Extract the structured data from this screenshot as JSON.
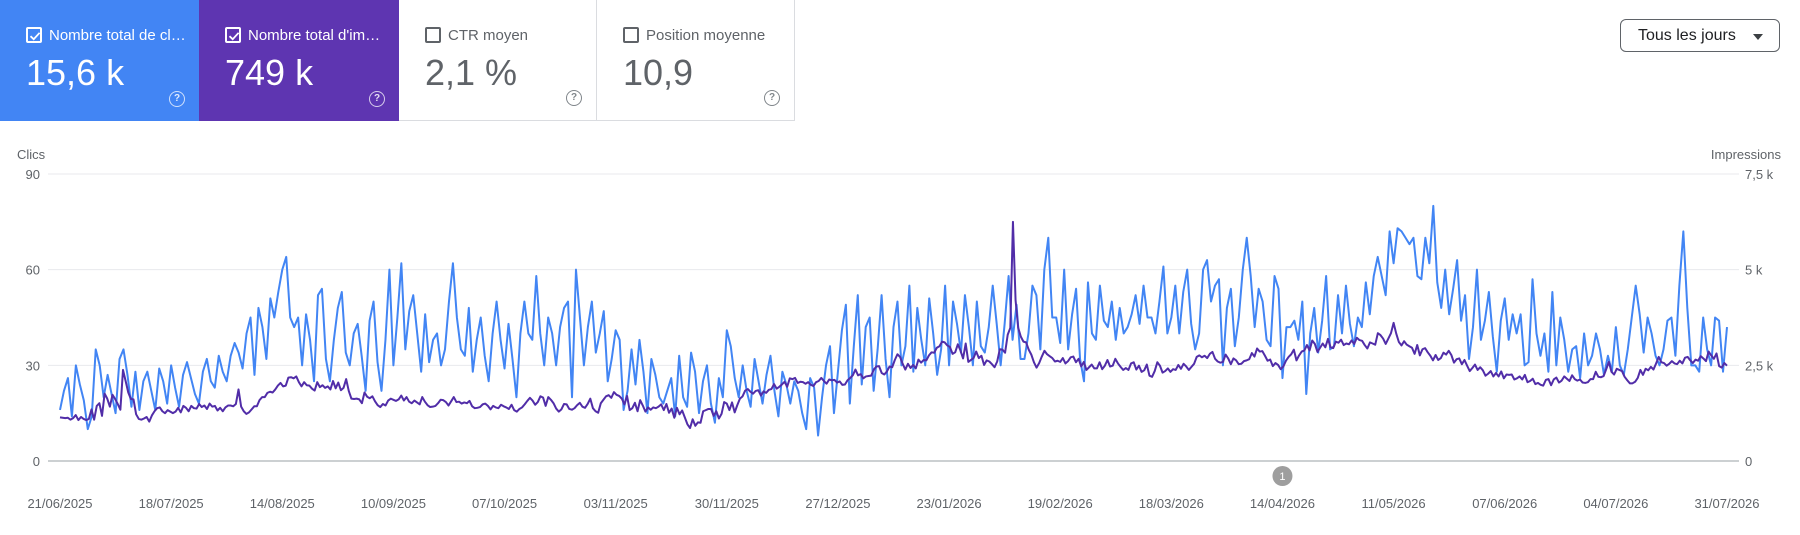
{
  "metrics": [
    {
      "label": "Nombre total de clics",
      "value": "15,6 k",
      "checked": true,
      "accent": "#4285f4"
    },
    {
      "label": "Nombre total d'impressions",
      "value": "749 k",
      "checked": true,
      "accent": "#5e35b1"
    },
    {
      "label": "CTR moyen",
      "value": "2,1 %",
      "checked": false
    },
    {
      "label": "Position moyenne",
      "value": "10,9",
      "checked": false
    }
  ],
  "help_glyph": "?",
  "period_selector": {
    "label": "Tous les jours"
  },
  "chart_data": {
    "type": "line",
    "y_left": {
      "label": "Clics",
      "ticks": [
        "90",
        "60",
        "30",
        "0"
      ],
      "range": [
        0,
        90
      ]
    },
    "y_right": {
      "label": "Impressions",
      "ticks": [
        "7,5 k",
        "5 k",
        "2,5 k",
        "0"
      ],
      "range": [
        0,
        7500
      ]
    },
    "x_ticks": [
      "21/06/2025",
      "18/07/2025",
      "14/08/2025",
      "10/09/2025",
      "07/10/2025",
      "03/11/2025",
      "30/11/2025",
      "27/12/2025",
      "23/01/2026",
      "19/02/2026",
      "18/03/2026",
      "14/04/2026",
      "11/05/2026",
      "07/06/2026",
      "04/07/2026",
      "31/07/2026"
    ],
    "grid": true,
    "annotation": {
      "text": "1",
      "date": "14/04/2026"
    },
    "series": [
      {
        "axis": "left",
        "color": "#4285f4",
        "values": [
          16,
          22,
          26,
          14,
          30,
          24,
          19,
          10,
          14,
          35,
          30,
          20,
          27,
          21,
          15,
          32,
          35,
          27,
          17,
          28,
          16,
          25,
          28,
          22,
          16,
          29,
          25,
          18,
          30,
          23,
          17,
          27,
          31,
          26,
          21,
          18,
          28,
          32,
          25,
          23,
          33,
          28,
          25,
          33,
          37,
          34,
          29,
          40,
          45,
          27,
          48,
          42,
          32,
          51,
          45,
          53,
          60,
          64,
          45,
          42,
          45,
          30,
          46,
          38,
          25,
          52,
          54,
          32,
          25,
          38,
          48,
          53,
          34,
          30,
          40,
          43,
          33,
          22,
          44,
          50,
          31,
          22,
          38,
          60,
          30,
          45,
          62,
          35,
          47,
          52,
          40,
          28,
          46,
          31,
          38,
          40,
          30,
          35,
          50,
          62,
          45,
          35,
          33,
          48,
          28,
          38,
          45,
          33,
          25,
          40,
          50,
          38,
          29,
          43,
          32,
          20,
          40,
          50,
          40,
          38,
          58,
          40,
          30,
          45,
          40,
          30,
          42,
          48,
          50,
          20,
          60,
          45,
          30,
          42,
          50,
          34,
          40,
          47,
          25,
          32,
          41,
          38,
          16,
          22,
          35,
          24,
          38,
          28,
          15,
          32,
          27,
          20,
          18,
          22,
          26,
          14,
          33,
          20,
          17,
          34,
          28,
          15,
          25,
          30,
          18,
          12,
          26,
          20,
          41,
          36,
          26,
          20,
          30,
          22,
          17,
          32,
          25,
          18,
          27,
          33,
          22,
          14,
          28,
          24,
          18,
          25,
          22,
          15,
          10,
          26,
          23,
          8,
          20,
          30,
          36,
          15,
          28,
          41,
          49,
          18,
          36,
          52,
          24,
          42,
          45,
          22,
          35,
          52,
          32,
          20,
          42,
          50,
          30,
          36,
          55,
          28,
          48,
          38,
          30,
          51,
          40,
          27,
          35,
          55,
          30,
          50,
          43,
          34,
          52,
          42,
          30,
          50,
          36,
          34,
          42,
          55,
          43,
          30,
          43,
          58,
          38,
          49,
          32,
          32,
          40,
          55,
          52,
          35,
          60,
          70,
          45,
          45,
          37,
          60,
          35,
          46,
          54,
          32,
          25,
          56,
          40,
          38,
          55,
          44,
          42,
          50,
          38,
          48,
          40,
          42,
          46,
          52,
          43,
          55,
          45,
          45,
          40,
          50,
          61,
          40,
          45,
          55,
          40,
          53,
          60,
          43,
          35,
          40,
          60,
          63,
          50,
          55,
          57,
          30,
          48,
          54,
          36,
          45,
          60,
          70,
          58,
          42,
          54,
          50,
          38,
          36,
          58,
          54,
          26,
          42,
          42,
          44,
          38,
          50,
          21,
          40,
          48,
          34,
          44,
          58,
          35,
          36,
          52,
          40,
          55,
          43,
          36,
          45,
          42,
          56,
          46,
          58,
          64,
          58,
          52,
          72,
          62,
          73,
          72,
          70,
          68,
          70,
          58,
          57,
          70,
          62,
          80,
          56,
          48,
          60,
          46,
          54,
          63,
          44,
          52,
          32,
          42,
          60,
          38,
          44,
          53,
          39,
          28,
          44,
          51,
          38,
          46,
          40,
          46,
          30,
          31,
          57,
          40,
          33,
          40,
          28,
          53,
          30,
          45,
          38,
          28,
          35,
          36,
          26,
          40,
          30,
          33,
          40,
          35,
          27,
          33,
          28,
          42,
          30,
          27,
          35,
          45,
          55,
          46,
          34,
          45,
          40,
          33,
          30,
          35,
          44,
          45,
          33,
          55,
          72,
          48,
          30,
          30,
          28,
          45,
          35,
          30,
          45,
          44,
          28,
          42
        ],
        "name": ""
      },
      {
        "axis": "right",
        "color": "#512da8",
        "values": [
          1140,
          1130,
          1120,
          1130,
          1080,
          1120,
          1200,
          1070,
          1150,
          1100,
          1070,
          1100,
          1350,
          1080,
          1440,
          1510,
          1180,
          1760,
          1630,
          1420,
          1730,
          1620,
          1490,
          1340,
          2380,
          2090,
          1790,
          1620,
          1610,
          1220,
          1100,
          1080,
          1110,
          1150,
          1030,
          1190,
          1300,
          1380,
          1400,
          1300,
          1250,
          1330,
          1290,
          1250,
          1290,
          1390,
          1270,
          1440,
          1390,
          1300,
          1440,
          1380,
          1370,
          1490,
          1410,
          1450,
          1360,
          1500,
          1420,
          1440,
          1320,
          1390,
          1300,
          1400,
          1450,
          1450,
          1430,
          1490,
          1870,
          1420,
          1300,
          1230,
          1270,
          1350,
          1430,
          1430,
          1590,
          1670,
          1670,
          1780,
          1810,
          1790,
          1870,
          1970,
          2040,
          1950,
          1970,
          2180,
          2190,
          2160,
          2210,
          2060,
          1950,
          2060,
          1980,
          1970,
          1890,
          1840,
          2060,
          1930,
          1980,
          1910,
          1950,
          1870,
          2090,
          1900,
          2050,
          1850,
          1910,
          2140,
          1830,
          1630,
          1620,
          1630,
          1610,
          1510,
          1790,
          1680,
          1640,
          1690,
          1560,
          1460,
          1410,
          1490,
          1450,
          1580,
          1630,
          1600,
          1570,
          1610,
          1710,
          1580,
          1670,
          1550,
          1510,
          1580,
          1530,
          1480,
          1670,
          1550,
          1460,
          1410,
          1420,
          1440,
          1510,
          1600,
          1590,
          1540,
          1450,
          1560,
          1670,
          1540,
          1550,
          1500,
          1530,
          1510,
          1570,
          1430,
          1380,
          1390,
          1410,
          1480,
          1500,
          1440,
          1350,
          1440,
          1400,
          1380,
          1470,
          1430,
          1400,
          1360,
          1470,
          1330,
          1290,
          1360,
          1400,
          1480,
          1570,
          1650,
          1580,
          1470,
          1540,
          1690,
          1660,
          1440,
          1670,
          1600,
          1510,
          1370,
          1290,
          1350,
          1490,
          1480,
          1360,
          1340,
          1380,
          1460,
          1520,
          1420,
          1390,
          1490,
          1630,
          1380,
          1300,
          1260,
          1510,
          1600,
          1690,
          1720,
          1650,
          1800,
          1730,
          1700,
          1630,
          1480,
          1700,
          1330,
          1380,
          1520,
          1300,
          1590,
          1450,
          1290,
          1400,
          1340,
          1400,
          1380,
          1420,
          1480,
          1330,
          1490,
          1260,
          1370,
          1130,
          1390,
          1220,
          1320,
          1140,
          960,
          860,
          1090,
          920,
          1010,
          1000,
          1300,
          1330,
          1360,
          1360,
          1180,
          1300,
          1110,
          1230,
          1540,
          1500,
          1330,
          1530,
          1270,
          1460,
          1630,
          1690,
          1840,
          1880,
          1810,
          1760,
          1830,
          1850,
          1710,
          1820,
          1780,
          1860,
          1880,
          2010,
          1890,
          1940,
          2000,
          2070,
          1940,
          2160,
          2140,
          2170,
          2040,
          2070,
          2060,
          2020,
          2060,
          1990,
          1960,
          2060,
          2090,
          2170,
          2090,
          2020,
          2130,
          2110,
          2120,
          2050,
          2080,
          1990,
          2000,
          2110,
          2170,
          2240,
          2390,
          2240,
          2270,
          2160,
          2210,
          2220,
          2230,
          2390,
          2470,
          2480,
          2300,
          2260,
          2340,
          2470,
          2450,
          2640,
          2790,
          2720,
          2540,
          2390,
          2540,
          2430,
          2510,
          2420,
          2650,
          2570,
          2640,
          2630,
          2760,
          2840,
          2830,
          2960,
          3000,
          3120,
          3100,
          3020,
          2980,
          2800,
          2840,
          3050,
          2890,
          2680,
          3070,
          2590,
          2640,
          2690,
          2860,
          2690,
          2750,
          2510,
          2630,
          2600,
          2530,
          2450,
          2600,
          2920,
          2910,
          2830,
          3300,
          3480,
          6250,
          4200,
          3480,
          3250,
          3120,
          3100,
          2910,
          2780,
          2580,
          2440,
          2560,
          2730,
          2880,
          2790,
          2740,
          2690,
          2600,
          2620,
          2590,
          2690,
          2550,
          2610,
          2710,
          2730,
          2580,
          2670,
          2470,
          2590,
          2380,
          2450,
          2520,
          2420,
          2420,
          2580,
          2400,
          2490,
          2640,
          2470,
          2490,
          2670,
          2550,
          2460,
          2380,
          2430,
          2380,
          2550,
          2580,
          2390,
          2490,
          2330,
          2370,
          2520,
          2230,
          2200,
          2350,
          2580,
          2490,
          2310,
          2350,
          2420,
          2330,
          2400,
          2380,
          2510,
          2410,
          2540,
          2470,
          2380,
          2460,
          2540,
          2720,
          2760,
          2710,
          2750,
          2690,
          2800,
          2850,
          2670,
          2600,
          2570,
          2590,
          2780,
          2680,
          2530,
          2680,
          2630,
          2530,
          2540,
          2610,
          2630,
          2660,
          2820,
          2730,
          2940,
          2860,
          2870,
          2750,
          2620,
          2650,
          2480,
          2560,
          2510,
          2400,
          2470,
          2620,
          2720,
          2790,
          2910,
          2630,
          2760,
          2860,
          2890,
          3030,
          2890,
          3150,
          3060,
          2850,
          2960,
          3070,
          2970,
          3190,
          2970,
          2950,
          3120,
          3090,
          3170,
          3030,
          3070,
          3050,
          3150,
          3060,
          3220,
          3160,
          3140,
          3030,
          2940,
          3100,
          3070,
          3040,
          3340,
          3290,
          3200,
          3060,
          3200,
          3340,
          3610,
          3330,
          3110,
          3020,
          3130,
          3040,
          3000,
          2960,
          2800,
          3030,
          2760,
          2920,
          2950,
          2840,
          2750,
          2630,
          2770,
          2640,
          2690,
          2830,
          2780,
          2880,
          2770,
          2570,
          2660,
          2680,
          2530,
          2640,
          2490,
          2350,
          2430,
          2520,
          2380,
          2450,
          2370,
          2230,
          2280,
          2350,
          2210,
          2300,
          2210,
          2340,
          2160,
          2260,
          2250,
          2260,
          2130,
          2160,
          2210,
          2130,
          2250,
          2060,
          2090,
          2150,
          2010,
          2040,
          1990,
          1970,
          2120,
          2140,
          1980,
          2130,
          2180,
          2050,
          2100,
          2210,
          2150,
          2090,
          2240,
          2140,
          2100,
          2130,
          2050,
          2040,
          2060,
          2140,
          2140,
          2330,
          2200,
          2190,
          2220,
          2400,
          2590,
          2330,
          2260,
          2410,
          2380,
          2350,
          2200,
          2110,
          2030,
          2030,
          2070,
          2170,
          2380,
          2250,
          2410,
          2370,
          2460,
          2390,
          2550,
          2720,
          2580,
          2560,
          2490,
          2540,
          2610,
          2550,
          2530,
          2620,
          2550,
          2700,
          2720,
          2630,
          2560,
          2650,
          2620,
          2740,
          2680,
          2610,
          2860,
          2760,
          2670,
          2810,
          2480,
          2440,
          2560,
          2490
        ]
      }
    ]
  }
}
